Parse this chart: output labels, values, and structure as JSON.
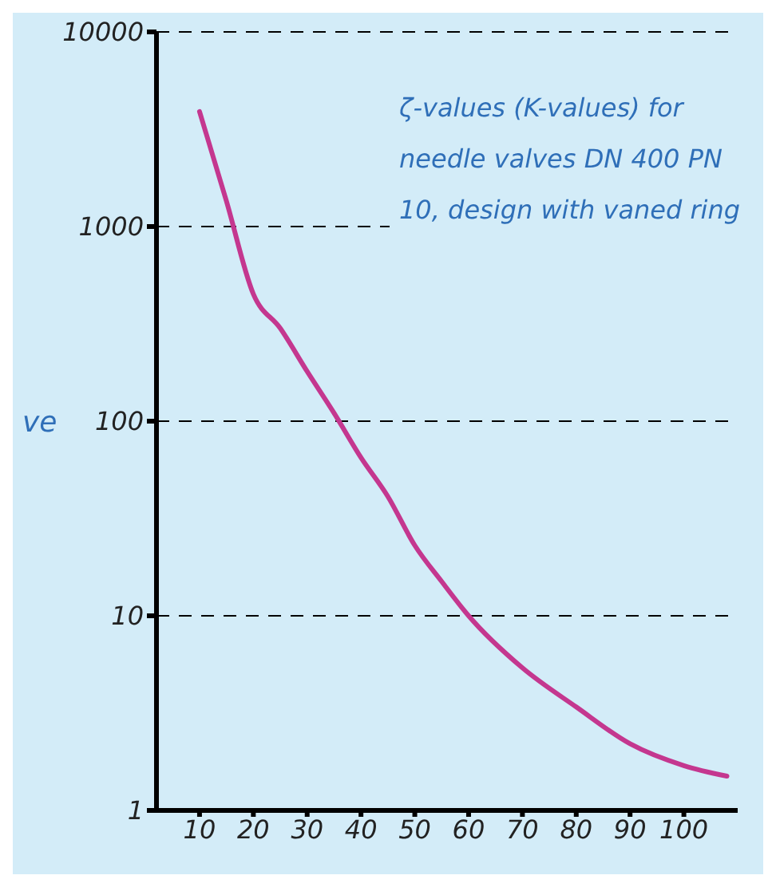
{
  "chart_data": {
    "type": "line",
    "ylabel": "ve",
    "annotations": [
      "ζ-values (K-values) for needle valves DN 400 PN 10, design with vaned ring"
    ],
    "x": [
      10,
      15,
      20,
      25,
      30,
      35,
      40,
      45,
      50,
      55,
      60,
      70,
      80,
      90,
      100,
      108
    ],
    "series": [
      {
        "color": "#c4378f",
        "values": [
          3900,
          1350,
          450,
          300,
          180,
          110,
          65,
          41,
          23,
          15,
          10,
          5.4,
          3.4,
          2.2,
          1.7,
          1.5
        ]
      }
    ],
    "log": "y",
    "xlim": [
      2,
      110
    ],
    "xticks": [
      10,
      20,
      30,
      40,
      50,
      60,
      70,
      80,
      90,
      100
    ],
    "ylim": [
      1,
      10000
    ],
    "yticks": [
      1,
      10,
      100,
      1000,
      10000
    ],
    "grid": "y",
    "marker": "none",
    "line_style": "solid"
  }
}
